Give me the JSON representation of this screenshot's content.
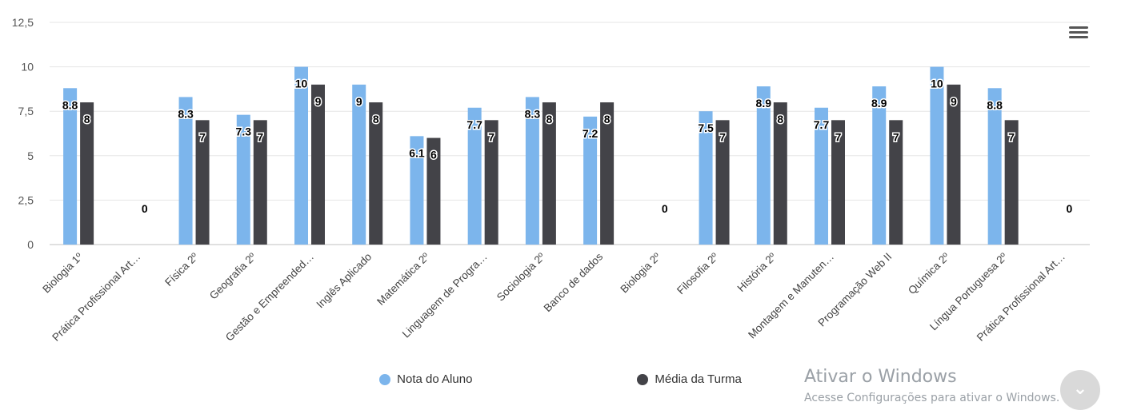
{
  "chart_data": {
    "type": "bar",
    "categories": [
      "Biologia 1º",
      "Prática Profissional Art…",
      "Física 2º",
      "Geografia 2º",
      "Gestão e Empreended…",
      "Inglês Aplicado",
      "Matemática 2º",
      "Linguagem de Progra…",
      "Sociologia 2º",
      "Banco de dados",
      "Biologia 2º",
      "Filosofia 2º",
      "História 2º",
      "Montagem e Manuten…",
      "Programação Web II",
      "Química 2º",
      "Língua Portuguesa 2º",
      "Prática Profissional Art…"
    ],
    "series": [
      {
        "name": "Nota do Aluno",
        "color": "#7cb5ec",
        "values": [
          8.8,
          null,
          8.3,
          7.3,
          10,
          9,
          6.1,
          7.7,
          8.3,
          7.2,
          null,
          7.5,
          8.9,
          7.7,
          8.9,
          10,
          8.8,
          null
        ]
      },
      {
        "name": "Média da Turma",
        "color": "#434348",
        "values": [
          8,
          0,
          7,
          7,
          9,
          8,
          6,
          7,
          8,
          8,
          0,
          7,
          8,
          7,
          7,
          9,
          7,
          0
        ]
      }
    ],
    "y_ticks": [
      "0",
      "2,5",
      "5",
      "7,5",
      "10",
      "12,5"
    ],
    "ylim": [
      0,
      12.5
    ],
    "grid": true,
    "legend_position": "bottom-center"
  },
  "legend": {
    "items": [
      {
        "label": "Nota do Aluno",
        "color": "#7cb5ec"
      },
      {
        "label": "Média da Turma",
        "color": "#434348"
      }
    ]
  },
  "watermark": {
    "title": "Ativar o Windows",
    "subtitle": "Acesse Configurações para ativar o Windows."
  }
}
